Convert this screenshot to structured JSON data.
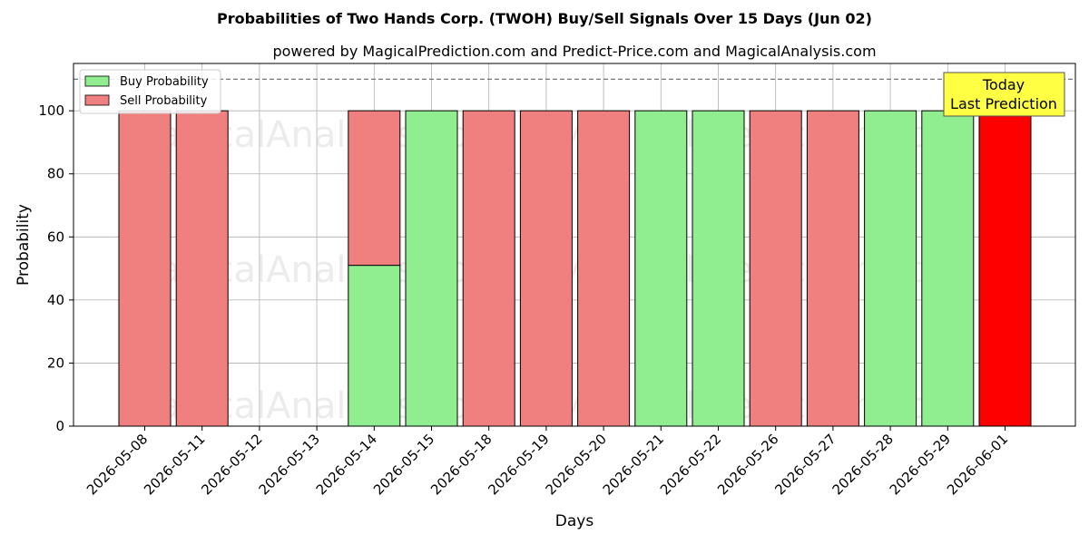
{
  "chart_data": {
    "type": "bar",
    "stacked": true,
    "title": "Probabilities of Two Hands Corp. (TWOH) Buy/Sell Signals Over 15 Days (Jun 02)",
    "subtitle": "powered by MagicalPrediction.com and Predict-Price.com and MagicalAnalysis.com",
    "xlabel": "Days",
    "ylabel": "Probability",
    "ylim": [
      0,
      115
    ],
    "yticks": [
      0,
      20,
      40,
      60,
      80,
      100
    ],
    "grid": true,
    "legend_position": "top-left",
    "reference_line": 110,
    "categories": [
      "2026-05-08",
      "2026-05-11",
      "2026-05-12",
      "2026-05-13",
      "2026-05-14",
      "2026-05-15",
      "2026-05-18",
      "2026-05-19",
      "2026-05-20",
      "2026-05-21",
      "2026-05-22",
      "2026-05-26",
      "2026-05-27",
      "2026-05-28",
      "2026-05-29",
      "2026-06-01"
    ],
    "series": [
      {
        "name": "Buy Probability",
        "color": "#90ee90",
        "values": [
          0,
          0,
          null,
          null,
          51,
          100,
          0,
          0,
          0,
          100,
          100,
          0,
          0,
          100,
          100,
          0
        ]
      },
      {
        "name": "Sell Probability",
        "color": "#f08080",
        "values": [
          100,
          100,
          null,
          null,
          49,
          0,
          100,
          100,
          100,
          0,
          0,
          100,
          100,
          0,
          0,
          100
        ]
      }
    ],
    "highlight": {
      "category": "2026-06-01",
      "color": "#ff0000"
    },
    "annotation": {
      "line1": "Today",
      "line2": "Last Prediction",
      "background": "#ffff44"
    },
    "watermarks": [
      "MagicalAnalysis.com",
      "MagicalPrediction.com"
    ]
  }
}
